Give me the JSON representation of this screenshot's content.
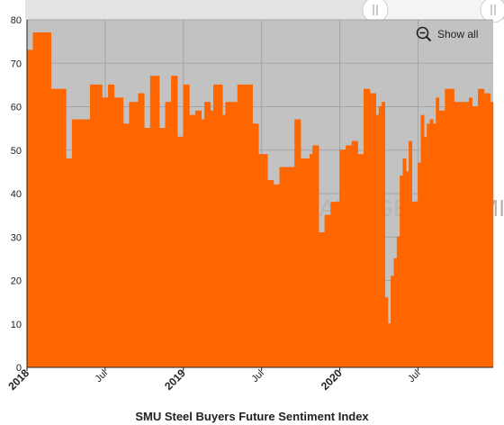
{
  "chart_data": {
    "type": "area",
    "title": "SMU Steel Buyers Future Sentiment Index",
    "y_ticks": [
      "0",
      "10",
      "20",
      "30",
      "40",
      "50",
      "60",
      "70",
      "80"
    ],
    "ylim": [
      0,
      80
    ],
    "x_tick_labels": [
      "2018",
      "Jul",
      "2019",
      "Jul",
      "2020",
      "Jul"
    ],
    "x_range_weeks": [
      0,
      155
    ],
    "grid": true,
    "watermark": "TRADINGECONOMICS",
    "series": [
      {
        "color": "#ff6600",
        "x": [
          0,
          2,
          8,
          13,
          15,
          21,
          25,
          27,
          29,
          32,
          34,
          37,
          39,
          41,
          44,
          46,
          48,
          50,
          52,
          54,
          56,
          58,
          59,
          61,
          62,
          65,
          66,
          70,
          75,
          77,
          80,
          82,
          84,
          89,
          91,
          94,
          95,
          97,
          99,
          101,
          104,
          106,
          108,
          110,
          112,
          114,
          116,
          117,
          118,
          119,
          120,
          121,
          122,
          123,
          124,
          125,
          126,
          127,
          128,
          129,
          130,
          131,
          132,
          133,
          134,
          135,
          136,
          137,
          139,
          142,
          146,
          147,
          148,
          150,
          152,
          154
        ],
        "values": [
          73,
          77,
          64,
          48,
          57,
          65,
          62,
          65,
          62,
          56,
          61,
          63,
          55,
          67,
          55,
          61,
          67,
          53,
          65,
          58,
          59,
          57,
          61,
          59,
          65,
          58,
          61,
          65,
          56,
          49,
          43,
          42,
          46,
          57,
          48,
          49,
          51,
          31,
          35,
          38,
          50,
          51,
          52,
          49,
          64,
          63,
          58,
          60,
          61,
          16,
          10,
          21,
          25,
          30,
          44,
          48,
          45,
          52,
          38,
          38,
          47,
          58,
          53,
          56,
          57,
          56,
          62,
          59,
          64,
          61,
          61,
          62,
          60,
          64,
          63,
          61
        ]
      }
    ],
    "controls": {
      "show_all_label": "Show all"
    }
  }
}
